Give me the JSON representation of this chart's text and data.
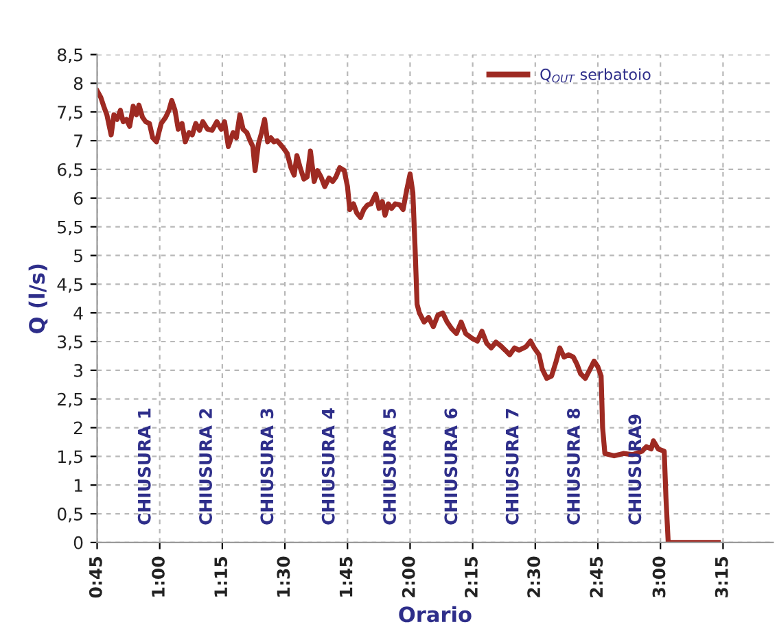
{
  "chart_data": {
    "type": "line",
    "xlabel": "Orario",
    "ylabel": "Q (l/s)",
    "xlim": [
      0.75,
      3.45
    ],
    "xticks": [
      {
        "value": 0.75,
        "label": "0:45"
      },
      {
        "value": 1,
        "label": "1:00"
      },
      {
        "value": 1.25,
        "label": "1:15"
      },
      {
        "value": 1.5,
        "label": "1:30"
      },
      {
        "value": 1.75,
        "label": "1:45"
      },
      {
        "value": 2,
        "label": "2:00"
      },
      {
        "value": 2.25,
        "label": "2:15"
      },
      {
        "value": 2.5,
        "label": "2:30"
      },
      {
        "value": 2.75,
        "label": "2:45"
      },
      {
        "value": 3,
        "label": "3:00"
      },
      {
        "value": 3.25,
        "label": "3:15"
      }
    ],
    "ylim": [
      0,
      8.5
    ],
    "yticks": [
      0,
      {
        "value": 0.5,
        "label": "0,5"
      },
      1,
      {
        "value": 1.5,
        "label": "1,5"
      },
      2,
      {
        "value": 2.5,
        "label": "2,5"
      },
      3,
      {
        "value": 3.5,
        "label": "3,5"
      },
      4,
      {
        "value": 4.5,
        "label": "4,5"
      },
      5,
      {
        "value": 5.5,
        "label": "5,5"
      },
      6,
      {
        "value": 6.5,
        "label": "6,5"
      },
      7,
      {
        "value": 7.5,
        "label": "7,5"
      },
      8,
      {
        "value": 8.5,
        "label": "8,5"
      }
    ],
    "grid": true,
    "legend": "top",
    "marker": "none",
    "line_style": "solid",
    "series": [
      {
        "name": "Q$_{OUT}$ serbatoio",
        "color": "#9e2a22",
        "x": [
          0.75,
          0.765,
          0.778,
          0.789,
          0.806,
          0.817,
          0.83,
          0.843,
          0.854,
          0.867,
          0.88,
          0.894,
          0.907,
          0.917,
          0.931,
          0.944,
          0.959,
          0.972,
          0.987,
          1.006,
          1.024,
          1.037,
          1.048,
          1.061,
          1.074,
          1.089,
          1.102,
          1.117,
          1.13,
          1.144,
          1.159,
          1.172,
          1.191,
          1.209,
          1.228,
          1.246,
          1.259,
          1.274,
          1.293,
          1.306,
          1.32,
          1.333,
          1.348,
          1.361,
          1.372,
          1.381,
          1.394,
          1.407,
          1.419,
          1.431,
          1.444,
          1.456,
          1.469,
          1.481,
          1.496,
          1.509,
          1.524,
          1.537,
          1.548,
          1.561,
          1.576,
          1.589,
          1.602,
          1.617,
          1.63,
          1.644,
          1.659,
          1.676,
          1.691,
          1.704,
          1.719,
          1.737,
          1.75,
          1.759,
          1.774,
          1.787,
          1.802,
          1.815,
          1.83,
          1.844,
          1.863,
          1.876,
          1.889,
          1.9,
          1.913,
          1.926,
          1.941,
          1.959,
          1.972,
          1.987,
          2.0,
          2.011,
          2.02,
          2.028,
          2.037,
          2.056,
          2.074,
          2.093,
          2.111,
          2.13,
          2.148,
          2.167,
          2.185,
          2.204,
          2.222,
          2.25,
          2.269,
          2.287,
          2.306,
          2.324,
          2.343,
          2.361,
          2.38,
          2.398,
          2.417,
          2.435,
          2.463,
          2.481,
          2.496,
          2.515,
          2.528,
          2.546,
          2.565,
          2.583,
          2.598,
          2.615,
          2.633,
          2.652,
          2.667,
          2.681,
          2.7,
          2.719,
          2.735,
          2.75,
          2.763,
          2.769,
          2.778,
          2.815,
          2.852,
          2.889,
          2.926,
          2.944,
          2.963,
          2.972,
          2.991,
          3.015,
          3.022,
          3.031,
          3.231
        ],
        "values": [
          7.87,
          7.75,
          7.58,
          7.45,
          7.1,
          7.45,
          7.37,
          7.53,
          7.33,
          7.37,
          7.25,
          7.6,
          7.45,
          7.62,
          7.41,
          7.33,
          7.3,
          7.05,
          6.98,
          7.3,
          7.41,
          7.53,
          7.7,
          7.53,
          7.2,
          7.3,
          6.98,
          7.14,
          7.1,
          7.3,
          7.18,
          7.33,
          7.2,
          7.18,
          7.33,
          7.2,
          7.33,
          6.9,
          7.14,
          7.05,
          7.45,
          7.2,
          7.14,
          7.0,
          6.9,
          6.48,
          6.94,
          7.14,
          7.37,
          6.98,
          7.05,
          6.98,
          7.0,
          6.94,
          6.86,
          6.78,
          6.53,
          6.4,
          6.74,
          6.53,
          6.33,
          6.37,
          6.82,
          6.29,
          6.48,
          6.37,
          6.2,
          6.35,
          6.29,
          6.37,
          6.53,
          6.48,
          6.2,
          5.8,
          5.9,
          5.74,
          5.66,
          5.8,
          5.88,
          5.9,
          6.07,
          5.82,
          5.94,
          5.7,
          5.9,
          5.82,
          5.9,
          5.88,
          5.8,
          6.15,
          6.42,
          6.1,
          5.12,
          4.15,
          4.0,
          3.84,
          3.92,
          3.76,
          3.96,
          4.0,
          3.84,
          3.72,
          3.64,
          3.84,
          3.64,
          3.55,
          3.51,
          3.68,
          3.47,
          3.39,
          3.49,
          3.43,
          3.35,
          3.27,
          3.39,
          3.35,
          3.41,
          3.51,
          3.39,
          3.27,
          3.02,
          2.86,
          2.9,
          3.15,
          3.39,
          3.23,
          3.27,
          3.23,
          3.1,
          2.94,
          2.86,
          3.02,
          3.16,
          3.06,
          2.9,
          2.0,
          1.55,
          1.51,
          1.55,
          1.53,
          1.59,
          1.67,
          1.63,
          1.77,
          1.63,
          1.59,
          0.78,
          0,
          0
        ]
      }
    ],
    "annotations": [
      "CHIUSURA 1",
      "CHIUSURA 2",
      "CHIUSURA 3",
      "CHIUSURA 4",
      "CHIUSURA 5",
      "CHIUSURA 6",
      "CHIUSURA 7",
      "CHIUSURA 8",
      "CHIUSURA9"
    ]
  }
}
